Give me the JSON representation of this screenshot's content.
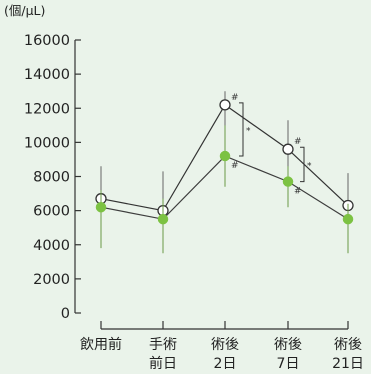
{
  "chart_data": {
    "type": "line",
    "title": "",
    "unit_label": "(個/μL)",
    "xlabel": "",
    "ylabel": "",
    "ylim": [
      0,
      16000
    ],
    "yticks": [
      0,
      2000,
      4000,
      6000,
      8000,
      10000,
      12000,
      14000,
      16000
    ],
    "categories": [
      {
        "line1": "飲用前",
        "line2": ""
      },
      {
        "line1": "手術",
        "line2": "前日"
      },
      {
        "line1": "術後",
        "line2": "2日"
      },
      {
        "line1": "術後",
        "line2": "7日"
      },
      {
        "line1": "術後",
        "line2": "21日"
      }
    ],
    "grid": false,
    "legend": "none",
    "series": [
      {
        "marker": "open-circle",
        "color": "#333333",
        "values": [
          6700,
          6000,
          12200,
          9600,
          6300
        ],
        "error_low": [
          5300,
          4500,
          10600,
          8000,
          4900
        ],
        "error_high": [
          8600,
          8300,
          13000,
          11300,
          8200
        ]
      },
      {
        "marker": "filled-circle",
        "color": "#7cc242",
        "values": [
          6200,
          5500,
          9200,
          7700,
          5500
        ],
        "error_low": [
          3800,
          3500,
          7400,
          6200,
          3500
        ],
        "error_high": [
          7200,
          6700,
          11000,
          8600,
          6400
        ]
      }
    ],
    "annotations": {
      "hash_mark": "#",
      "star_mark": "*"
    }
  }
}
